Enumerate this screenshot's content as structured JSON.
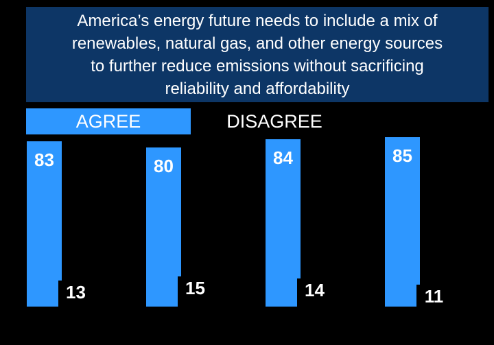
{
  "header": {
    "lines": [
      "America’s energy future needs to include a mix of",
      "renewables, natural gas, and other energy sources",
      "to further reduce emissions without sacrificing",
      "reliability and affordability"
    ],
    "bg_color": "#0d3666",
    "text_color": "#ffffff"
  },
  "legend": {
    "agree_label": "AGREE",
    "disagree_label": "DISAGREE",
    "agree_swatch_color": "#2e97ff",
    "disagree_swatch_color": "#000000",
    "text_color": "#ffffff"
  },
  "colors": {
    "background": "#000000",
    "agree_bar": "#2e97ff",
    "disagree_bar": "#000000",
    "value_label": "#ffffff"
  },
  "chart_data": {
    "type": "bar",
    "title": "America’s energy future needs to include a mix of renewables, natural gas, and other energy sources to further reduce emissions without sacrificing reliability and affordability",
    "groups": 4,
    "category_labels_visible": false,
    "series": [
      {
        "name": "AGREE",
        "color": "#2e97ff",
        "values": [
          83,
          80,
          84,
          85
        ]
      },
      {
        "name": "DISAGREE",
        "color": "#000000",
        "values": [
          13,
          15,
          14,
          11
        ]
      }
    ],
    "value_labels_shown": true,
    "xlabel": "",
    "ylabel": "",
    "ylim": [
      0,
      100
    ],
    "grid": false,
    "legend_position": "top"
  }
}
